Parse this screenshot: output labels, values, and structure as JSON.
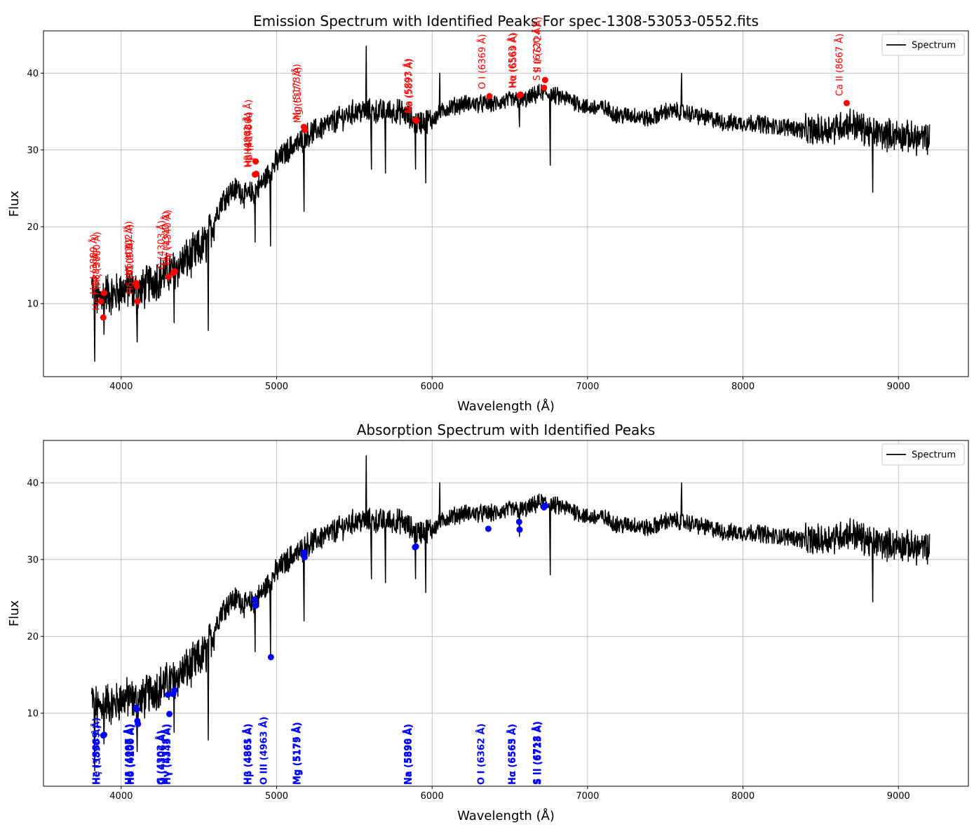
{
  "chart_data": [
    {
      "type": "line",
      "title": "Emission Spectrum with Identified Peaks For spec-1308-53053-0552.fits",
      "xlabel": "Wavelength (Å)",
      "ylabel": "Flux",
      "xlim": [
        3500,
        9450
      ],
      "ylim": [
        0.5,
        45.5
      ],
      "x_ticks": [
        4000,
        5000,
        6000,
        7000,
        8000,
        9000
      ],
      "y_ticks": [
        10,
        20,
        30,
        40
      ],
      "grid": true,
      "legend": {
        "position": "top-right",
        "entries": [
          "Spectrum"
        ]
      },
      "series": [
        {
          "name": "Spectrum",
          "color": "#000000",
          "anchors": [
            [
              3810,
              12.0
            ],
            [
              3850,
              10.5
            ],
            [
              3900,
              11.5
            ],
            [
              3950,
              11.0
            ],
            [
              4000,
              11.8
            ],
            [
              4050,
              12.0
            ],
            [
              4100,
              11.5
            ],
            [
              4150,
              12.0
            ],
            [
              4200,
              13.0
            ],
            [
              4250,
              13.5
            ],
            [
              4300,
              14.0
            ],
            [
              4350,
              14.5
            ],
            [
              4400,
              15.5
            ],
            [
              4450,
              16.0
            ],
            [
              4500,
              17.0
            ],
            [
              4550,
              18.0
            ],
            [
              4600,
              21.0
            ],
            [
              4650,
              23.5
            ],
            [
              4700,
              24.5
            ],
            [
              4750,
              25.0
            ],
            [
              4800,
              24.0
            ],
            [
              4850,
              24.5
            ],
            [
              4900,
              25.5
            ],
            [
              4950,
              27.0
            ],
            [
              5000,
              28.5
            ],
            [
              5050,
              29.5
            ],
            [
              5100,
              30.5
            ],
            [
              5150,
              31.0
            ],
            [
              5200,
              32.0
            ],
            [
              5300,
              33.0
            ],
            [
              5400,
              34.0
            ],
            [
              5500,
              35.0
            ],
            [
              5600,
              35.0
            ],
            [
              5700,
              35.0
            ],
            [
              5800,
              35.0
            ],
            [
              5900,
              33.5
            ],
            [
              6000,
              34.0
            ],
            [
              6100,
              35.5
            ],
            [
              6200,
              36.0
            ],
            [
              6300,
              36.0
            ],
            [
              6400,
              36.0
            ],
            [
              6500,
              36.5
            ],
            [
              6600,
              36.5
            ],
            [
              6700,
              37.5
            ],
            [
              6800,
              37.0
            ],
            [
              6900,
              36.5
            ],
            [
              7000,
              35.5
            ],
            [
              7100,
              35.5
            ],
            [
              7200,
              34.5
            ],
            [
              7300,
              34.5
            ],
            [
              7400,
              34.0
            ],
            [
              7500,
              35.0
            ],
            [
              7600,
              35.0
            ],
            [
              7700,
              34.5
            ],
            [
              7800,
              34.0
            ],
            [
              7900,
              33.5
            ],
            [
              8000,
              33.5
            ],
            [
              8100,
              33.5
            ],
            [
              8200,
              33.0
            ],
            [
              8300,
              33.0
            ],
            [
              8400,
              32.5
            ],
            [
              8500,
              32.5
            ],
            [
              8600,
              33.0
            ],
            [
              8700,
              33.5
            ],
            [
              8800,
              32.5
            ],
            [
              8900,
              32.0
            ],
            [
              9000,
              32.0
            ],
            [
              9100,
              31.5
            ],
            [
              9200,
              31.5
            ]
          ],
          "spikes": [
            [
              3830,
              2.5
            ],
            [
              3890,
              6.0
            ],
            [
              4102,
              5.0
            ],
            [
              4340,
              7.5
            ],
            [
              4560,
              6.5
            ],
            [
              4861,
              18.0
            ],
            [
              4960,
              17.5
            ],
            [
              5176,
              22.0
            ],
            [
              5577,
              43.5
            ],
            [
              5610,
              27.5
            ],
            [
              5700,
              27.0
            ],
            [
              5893,
              27.5
            ],
            [
              5960,
              25.7
            ],
            [
              6050,
              40.0
            ],
            [
              6563,
              33.0
            ],
            [
              6760,
              28.0
            ],
            [
              7605,
              40.0
            ],
            [
              8835,
              24.5
            ]
          ]
        }
      ],
      "peaks": [
        {
          "wavelength": 3870,
          "flux": 10.3,
          "label": "He I (3889 Å)",
          "color": "#ff0000"
        },
        {
          "wavelength": 3885,
          "flux": 8.2,
          "label": "He I (3889 Å)",
          "color": "#ff0000"
        },
        {
          "wavelength": 3890,
          "flux": 11.4,
          "label": "Hζ (3890 Å)",
          "color": "#ff0000"
        },
        {
          "wavelength": 4095,
          "flux": 12.7,
          "label": "Hδ (4102 Å)",
          "color": "#ff0000"
        },
        {
          "wavelength": 4100,
          "flux": 12.3,
          "label": "Hδ (4097 Å)",
          "color": "#ff0000"
        },
        {
          "wavelength": 4105,
          "flux": 10.3,
          "label": "Hδ (4109 Å)",
          "color": "#ff0000"
        },
        {
          "wavelength": 4305,
          "flux": 13.5,
          "label": "G (4303 Å)",
          "color": "#ff0000"
        },
        {
          "wavelength": 4335,
          "flux": 14.0,
          "label": "Hγ (4340 Å)",
          "color": "#ff0000"
        },
        {
          "wavelength": 4345,
          "flux": 14.2,
          "label": "Hγ (4340 Å)",
          "color": "#ff0000"
        },
        {
          "wavelength": 4860,
          "flux": 26.8,
          "label": "Hβ (4861 Å)",
          "color": "#ff0000"
        },
        {
          "wavelength": 4865,
          "flux": 28.5,
          "label": "Hβ (4864 Å)",
          "color": "#ff0000"
        },
        {
          "wavelength": 4869,
          "flux": 26.9,
          "label": "Hβ (4870 Å)",
          "color": "#ff0000"
        },
        {
          "wavelength": 5175,
          "flux": 33.0,
          "label": "Mg (5173 Å)",
          "color": "#ff0000"
        },
        {
          "wavelength": 5182,
          "flux": 32.6,
          "label": "Mg (5177 Å)",
          "color": "#ff0000"
        },
        {
          "wavelength": 5893,
          "flux": 33.9,
          "label": "Na (5893 Å)",
          "color": "#ff0000"
        },
        {
          "wavelength": 5900,
          "flux": 33.8,
          "label": "Na (5897 Å)",
          "color": "#ff0000"
        },
        {
          "wavelength": 6369,
          "flux": 37.0,
          "label": "O I (6369 Å)",
          "color": "#ff0000"
        },
        {
          "wavelength": 6563,
          "flux": 37.1,
          "label": "Hα (6563 Å)",
          "color": "#ff0000"
        },
        {
          "wavelength": 6569,
          "flux": 37.2,
          "label": "Hα (6569 Å)",
          "color": "#ff0000"
        },
        {
          "wavelength": 6720,
          "flux": 38.1,
          "label": "S II (6720 Å)",
          "color": "#ff0000"
        },
        {
          "wavelength": 6727,
          "flux": 39.1,
          "label": "S II (6724 Å)",
          "color": "#ff0000"
        },
        {
          "wavelength": 8667,
          "flux": 36.1,
          "label": "Ca II (8667 Å)",
          "color": "#ff0000"
        }
      ]
    },
    {
      "type": "line",
      "title": "Absorption Spectrum with Identified Peaks",
      "xlabel": "Wavelength (Å)",
      "ylabel": "Flux",
      "xlim": [
        3500,
        9450
      ],
      "ylim": [
        0.5,
        45.5
      ],
      "x_ticks": [
        4000,
        5000,
        6000,
        7000,
        8000,
        9000
      ],
      "y_ticks": [
        10,
        20,
        30,
        40
      ],
      "grid": true,
      "legend": {
        "position": "top-right",
        "entries": [
          "Spectrum"
        ]
      },
      "series": [
        {
          "name": "Spectrum",
          "color": "#000000"
        }
      ],
      "peaks": [
        {
          "wavelength": 3885,
          "flux": 7.1,
          "label": "He I (3889 Å)",
          "color": "#0000ff"
        },
        {
          "wavelength": 3890,
          "flux": 7.2,
          "label": "Hζ (3890 Å)",
          "color": "#0000ff"
        },
        {
          "wavelength": 4095,
          "flux": 10.7,
          "label": "Hδ (4097 Å)",
          "color": "#0000ff"
        },
        {
          "wavelength": 4100,
          "flux": 10.5,
          "label": "Hδ (4102 Å)",
          "color": "#0000ff"
        },
        {
          "wavelength": 4104,
          "flux": 9.0,
          "label": "Hδ (4109 Å)",
          "color": "#0000ff"
        },
        {
          "wavelength": 4108,
          "flux": 8.6,
          "label": "Hδ (4100 Å)",
          "color": "#0000ff"
        },
        {
          "wavelength": 4300,
          "flux": 12.4,
          "label": "G (4302 Å)",
          "color": "#0000ff"
        },
        {
          "wavelength": 4310,
          "flux": 9.9,
          "label": "G (4306 Å)",
          "color": "#0000ff"
        },
        {
          "wavelength": 4335,
          "flux": 12.5,
          "label": "Hγ (4338 Å)",
          "color": "#0000ff"
        },
        {
          "wavelength": 4343,
          "flux": 13.0,
          "label": "Hγ (4343 Å)",
          "color": "#0000ff"
        },
        {
          "wavelength": 4860,
          "flux": 24.8,
          "label": "Hβ (4861 Å)",
          "color": "#0000ff"
        },
        {
          "wavelength": 4865,
          "flux": 24.0,
          "label": "Hβ (4865 Å)",
          "color": "#0000ff"
        },
        {
          "wavelength": 4963,
          "flux": 17.3,
          "label": "O III (4963 Å)",
          "color": "#0000ff"
        },
        {
          "wavelength": 5175,
          "flux": 30.9,
          "label": "Mg (5175 Å)",
          "color": "#0000ff"
        },
        {
          "wavelength": 5180,
          "flux": 30.3,
          "label": "Mg (5179 Å)",
          "color": "#0000ff"
        },
        {
          "wavelength": 5890,
          "flux": 31.6,
          "label": "Na (5890 Å)",
          "color": "#0000ff"
        },
        {
          "wavelength": 5896,
          "flux": 31.7,
          "label": "Na (5896 Å)",
          "color": "#0000ff"
        },
        {
          "wavelength": 6362,
          "flux": 34.0,
          "label": "O I (6362 Å)",
          "color": "#0000ff"
        },
        {
          "wavelength": 6560,
          "flux": 34.9,
          "label": "Hα (6565 Å)",
          "color": "#0000ff"
        },
        {
          "wavelength": 6563,
          "flux": 33.9,
          "label": "Hα (6563 Å)",
          "color": "#0000ff"
        },
        {
          "wavelength": 6720,
          "flux": 36.8,
          "label": "S II (6718 Å)",
          "color": "#0000ff"
        },
        {
          "wavelength": 6728,
          "flux": 37.0,
          "label": "S II (6723 Å)",
          "color": "#0000ff"
        }
      ]
    }
  ]
}
